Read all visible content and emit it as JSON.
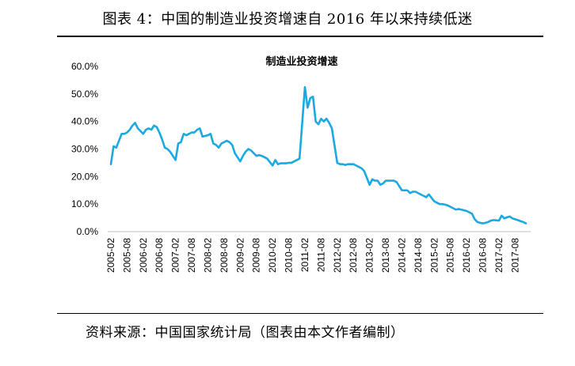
{
  "figure_caption": "图表 4：中国的制造业投资增速自 2016 年以来持续低迷",
  "source_note": "资料来源：中国国家统计局（图表由本文作者编制）",
  "chart_data": {
    "type": "line",
    "title": "制造业投资增速",
    "xlabel": "",
    "ylabel": "",
    "ylim": [
      0,
      60
    ],
    "yticks": [
      "0.0%",
      "10.0%",
      "20.0%",
      "30.0%",
      "40.0%",
      "50.0%",
      "60.0%"
    ],
    "xticks": [
      "2005-02",
      "2005-08",
      "2006-02",
      "2006-08",
      "2007-02",
      "2007-08",
      "2008-02",
      "2008-08",
      "2009-02",
      "2009-08",
      "2010-02",
      "2010-08",
      "2011-02",
      "2011-08",
      "2012-02",
      "2012-08",
      "2013-02",
      "2013-08",
      "2014-02",
      "2014-08",
      "2015-02",
      "2015-08",
      "2016-02",
      "2016-08",
      "2017-02",
      "2017-08"
    ],
    "line_color": "#1aa9e0",
    "grid": false,
    "series": [
      {
        "x": [
          "2005-02",
          "2005-03",
          "2005-04",
          "2005-05",
          "2005-06",
          "2005-07",
          "2005-08",
          "2005-09",
          "2005-10",
          "2005-11",
          "2005-12",
          "2006-02",
          "2006-03",
          "2006-04",
          "2006-05",
          "2006-06",
          "2006-07",
          "2006-08",
          "2006-09",
          "2006-10",
          "2006-11",
          "2006-12",
          "2007-02",
          "2007-03",
          "2007-04",
          "2007-05",
          "2007-06",
          "2007-07",
          "2007-08",
          "2007-09",
          "2007-10",
          "2007-11",
          "2007-12",
          "2008-02",
          "2008-03",
          "2008-04",
          "2008-05",
          "2008-06",
          "2008-07",
          "2008-08",
          "2008-09",
          "2008-10",
          "2008-11",
          "2008-12",
          "2009-02",
          "2009-03",
          "2009-04",
          "2009-05",
          "2009-06",
          "2009-07",
          "2009-08",
          "2009-09",
          "2009-10",
          "2009-11",
          "2009-12",
          "2010-02",
          "2010-03",
          "2010-04",
          "2010-05",
          "2010-06",
          "2010-07",
          "2010-08",
          "2010-09",
          "2010-10",
          "2010-11",
          "2010-12",
          "2011-02",
          "2011-03",
          "2011-04",
          "2011-05",
          "2011-06",
          "2011-07",
          "2011-08",
          "2011-09",
          "2011-10",
          "2011-11",
          "2011-12",
          "2012-02",
          "2012-03",
          "2012-04",
          "2012-05",
          "2012-06",
          "2012-07",
          "2012-08",
          "2012-09",
          "2012-10",
          "2012-11",
          "2012-12",
          "2013-02",
          "2013-03",
          "2013-04",
          "2013-05",
          "2013-06",
          "2013-07",
          "2013-08",
          "2013-09",
          "2013-10",
          "2013-11",
          "2013-12",
          "2014-02",
          "2014-03",
          "2014-04",
          "2014-05",
          "2014-06",
          "2014-07",
          "2014-08",
          "2014-09",
          "2014-10",
          "2014-11",
          "2014-12",
          "2015-02",
          "2015-03",
          "2015-04",
          "2015-05",
          "2015-06",
          "2015-07",
          "2015-08",
          "2015-09",
          "2015-10",
          "2015-11",
          "2015-12",
          "2016-02",
          "2016-03",
          "2016-04",
          "2016-05",
          "2016-06",
          "2016-07",
          "2016-08",
          "2016-09",
          "2016-10",
          "2016-11",
          "2016-12",
          "2017-02",
          "2017-03",
          "2017-04",
          "2017-05",
          "2017-06",
          "2017-07",
          "2017-08",
          "2017-09",
          "2017-10",
          "2017-11",
          "2017-12"
        ],
        "values": [
          24.5,
          31.0,
          30.5,
          33.0,
          35.5,
          35.5,
          36.0,
          37.0,
          38.5,
          39.5,
          37.5,
          35.5,
          37.0,
          37.5,
          37.0,
          38.5,
          38.0,
          36.0,
          33.5,
          30.5,
          30.0,
          29.0,
          26.0,
          32.0,
          32.5,
          35.5,
          35.0,
          35.5,
          36.0,
          36.0,
          37.0,
          37.5,
          34.5,
          35.0,
          35.5,
          32.0,
          31.5,
          30.5,
          32.0,
          32.5,
          33.0,
          32.5,
          31.5,
          28.5,
          25.5,
          27.5,
          29.0,
          30.0,
          29.5,
          28.5,
          27.5,
          27.8,
          27.5,
          27.0,
          26.5,
          24.0,
          26.0,
          24.5,
          24.8,
          24.8,
          24.8,
          25.0,
          25.0,
          25.5,
          26.0,
          26.5,
          52.5,
          45.0,
          48.5,
          49.0,
          40.0,
          39.0,
          41.0,
          40.0,
          41.0,
          39.5,
          37.5,
          25.0,
          24.5,
          24.5,
          24.2,
          24.5,
          24.5,
          24.5,
          24.0,
          23.5,
          23.0,
          22.0,
          17.0,
          19.0,
          18.5,
          18.5,
          17.0,
          17.5,
          18.5,
          18.5,
          18.5,
          18.5,
          18.0,
          15.0,
          15.0,
          15.0,
          14.0,
          14.5,
          14.5,
          14.0,
          13.5,
          13.0,
          12.5,
          13.5,
          11.0,
          10.5,
          10.0,
          10.0,
          9.8,
          9.5,
          9.0,
          8.5,
          8.0,
          8.2,
          8.0,
          7.5,
          7.0,
          6.5,
          4.5,
          3.5,
          3.2,
          3.0,
          3.2,
          3.5,
          4.0,
          4.2,
          4.0,
          5.8,
          4.8,
          5.2,
          5.5,
          4.8,
          4.5,
          4.2,
          3.8,
          3.5,
          3.0
        ]
      }
    ]
  }
}
